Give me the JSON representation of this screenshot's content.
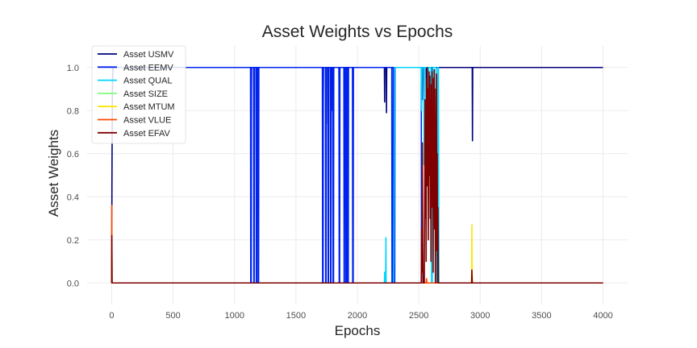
{
  "chart_data": {
    "type": "line",
    "title": "Asset Weights vs Epochs",
    "xlabel": "Epochs",
    "ylabel": "Asset Weights",
    "xlim": [
      -200,
      4200
    ],
    "ylim": [
      -0.1,
      1.1
    ],
    "xticks": [
      0,
      500,
      1000,
      1500,
      2000,
      2500,
      3000,
      3500,
      4000
    ],
    "yticks": [
      0.0,
      0.2,
      0.4,
      0.6,
      0.8,
      1.0
    ],
    "ytick_labels": [
      "0.0",
      "0.2",
      "0.4",
      "0.6",
      "0.8",
      "1.0"
    ],
    "grid": true,
    "legend_position": "top-left",
    "series": [
      {
        "name": "Asset USMV",
        "color": "#00007f",
        "points": [
          [
            0,
            0.0
          ],
          [
            2,
            0.45
          ],
          [
            4,
            0.72
          ],
          [
            6,
            0.9
          ],
          [
            10,
            1.0
          ],
          [
            1135,
            1.0
          ],
          [
            1137,
            0.83
          ],
          [
            1139,
            1.0
          ],
          [
            1720,
            1.0
          ],
          [
            1722,
            0.83
          ],
          [
            1724,
            1.0
          ],
          [
            1745,
            1.0
          ],
          [
            1747,
            0.74
          ],
          [
            1749,
            1.0
          ],
          [
            1795,
            1.0
          ],
          [
            1797,
            0.8
          ],
          [
            1799,
            1.0
          ],
          [
            1850,
            1.0
          ],
          [
            1852,
            0.84
          ],
          [
            1854,
            1.0
          ],
          [
            1905,
            1.0
          ],
          [
            1907,
            0.89
          ],
          [
            1909,
            1.0
          ],
          [
            2220,
            1.0
          ],
          [
            2222,
            0.84
          ],
          [
            2224,
            1.0
          ],
          [
            2235,
            1.0
          ],
          [
            2237,
            0.79
          ],
          [
            2239,
            1.0
          ],
          [
            2525,
            1.0
          ],
          [
            2528,
            0.85
          ],
          [
            2531,
            1.0
          ],
          [
            2560,
            1.0
          ],
          [
            2563,
            0.55
          ],
          [
            2566,
            1.0
          ],
          [
            2600,
            1.0
          ],
          [
            2604,
            0.7
          ],
          [
            2608,
            1.0
          ],
          [
            2935,
            1.0
          ],
          [
            2937,
            0.66
          ],
          [
            2939,
            1.0
          ],
          [
            4000,
            1.0
          ]
        ]
      },
      {
        "name": "Asset EEMV",
        "color": "#0022ee",
        "points": [
          [
            0,
            1.0
          ],
          [
            1130,
            1.0
          ],
          [
            1132,
            0.0
          ],
          [
            1134,
            0.17
          ],
          [
            1136,
            0.0
          ],
          [
            1138,
            1.0
          ],
          [
            1155,
            1.0
          ],
          [
            1157,
            0.0
          ],
          [
            1160,
            0.0
          ],
          [
            1162,
            1.0
          ],
          [
            1175,
            1.0
          ],
          [
            1177,
            0.0
          ],
          [
            1180,
            0.0
          ],
          [
            1182,
            1.0
          ],
          [
            1190,
            1.0
          ],
          [
            1192,
            0.0
          ],
          [
            1196,
            0.0
          ],
          [
            1198,
            1.0
          ],
          [
            1715,
            1.0
          ],
          [
            1717,
            0.0
          ],
          [
            1719,
            0.16
          ],
          [
            1721,
            0.0
          ],
          [
            1723,
            1.0
          ],
          [
            1740,
            1.0
          ],
          [
            1742,
            0.0
          ],
          [
            1745,
            0.0
          ],
          [
            1747,
            1.0
          ],
          [
            1760,
            1.0
          ],
          [
            1762,
            0.0
          ],
          [
            1765,
            0.0
          ],
          [
            1767,
            1.0
          ],
          [
            1780,
            1.0
          ],
          [
            1782,
            0.0
          ],
          [
            1785,
            0.0
          ],
          [
            1787,
            1.0
          ],
          [
            1800,
            1.0
          ],
          [
            1802,
            0.0
          ],
          [
            1806,
            0.0
          ],
          [
            1808,
            1.0
          ],
          [
            1850,
            1.0
          ],
          [
            1852,
            0.0
          ],
          [
            1856,
            0.0
          ],
          [
            1858,
            1.0
          ],
          [
            1890,
            1.0
          ],
          [
            1892,
            0.0
          ],
          [
            1895,
            0.0
          ],
          [
            1897,
            1.0
          ],
          [
            1905,
            1.0
          ],
          [
            1907,
            0.0
          ],
          [
            1912,
            0.0
          ],
          [
            1914,
            1.0
          ],
          [
            1920,
            1.0
          ],
          [
            1922,
            0.0
          ],
          [
            1926,
            0.0
          ],
          [
            1928,
            1.0
          ],
          [
            1960,
            1.0
          ],
          [
            1962,
            0.0
          ],
          [
            1966,
            0.0
          ],
          [
            1968,
            1.0
          ],
          [
            2280,
            1.0
          ],
          [
            2282,
            0.0
          ],
          [
            2290,
            0.0
          ],
          [
            2292,
            1.0
          ],
          [
            2298,
            1.0
          ],
          [
            2300,
            0.0
          ],
          [
            2304,
            0.0
          ],
          [
            2306,
            1.0
          ],
          [
            2520,
            1.0
          ],
          [
            2522,
            0.0
          ],
          [
            4000,
            0.0
          ]
        ]
      },
      {
        "name": "Asset QUAL",
        "color": "#00d4ff",
        "points": [
          [
            0,
            0.0
          ],
          [
            2220,
            0.0
          ],
          [
            2222,
            0.05
          ],
          [
            2224,
            0.0
          ],
          [
            2230,
            0.0
          ],
          [
            2232,
            0.21
          ],
          [
            2234,
            0.0
          ],
          [
            2295,
            0.0
          ],
          [
            2297,
            0.12
          ],
          [
            2300,
            0.57
          ],
          [
            2302,
            1.0
          ],
          [
            2520,
            1.0
          ],
          [
            2523,
            0.8
          ],
          [
            2526,
            1.0
          ],
          [
            2540,
            1.0
          ],
          [
            2543,
            0.55
          ],
          [
            2546,
            1.0
          ],
          [
            2575,
            1.0
          ],
          [
            2578,
            0.7
          ],
          [
            2581,
            1.0
          ],
          [
            2600,
            1.0
          ],
          [
            2604,
            0.0
          ],
          [
            2610,
            0.0
          ],
          [
            2614,
            1.0
          ],
          [
            2640,
            1.0
          ],
          [
            2644,
            0.0
          ],
          [
            2650,
            0.0
          ],
          [
            2654,
            1.0
          ],
          [
            2660,
            1.0
          ],
          [
            2664,
            0.0
          ],
          [
            4000,
            0.0
          ]
        ]
      },
      {
        "name": "Asset SIZE",
        "color": "#7cff79",
        "points": [
          [
            0,
            0.0
          ],
          [
            4000,
            0.0
          ]
        ]
      },
      {
        "name": "Asset MTUM",
        "color": "#ffe600",
        "points": [
          [
            0,
            0.0
          ],
          [
            2930,
            0.0
          ],
          [
            2932,
            0.27
          ],
          [
            2934,
            0.05
          ],
          [
            2937,
            0.0
          ],
          [
            4000,
            0.0
          ]
        ]
      },
      {
        "name": "Asset VLUE",
        "color": "#ff4a00",
        "points": [
          [
            0,
            0.0
          ],
          [
            1,
            0.36
          ],
          [
            3,
            0.0
          ],
          [
            2560,
            0.0
          ],
          [
            2563,
            0.02
          ],
          [
            2566,
            0.0
          ],
          [
            4000,
            0.0
          ]
        ]
      },
      {
        "name": "Asset EFAV",
        "color": "#7f0000",
        "points": [
          [
            0,
            0.0
          ],
          [
            1,
            0.22
          ],
          [
            3,
            0.0
          ],
          [
            2520,
            0.0
          ],
          [
            2523,
            0.25
          ],
          [
            2526,
            0.05
          ],
          [
            2529,
            0.65
          ],
          [
            2532,
            0.2
          ],
          [
            2535,
            0.0
          ],
          [
            2545,
            0.0
          ],
          [
            2548,
            0.4
          ],
          [
            2551,
            0.85
          ],
          [
            2554,
            0.3
          ],
          [
            2557,
            0.7
          ],
          [
            2560,
            0.1
          ],
          [
            2563,
            0.95
          ],
          [
            2566,
            0.45
          ],
          [
            2569,
            1.0
          ],
          [
            2572,
            0.6
          ],
          [
            2575,
            0.9
          ],
          [
            2578,
            0.2
          ],
          [
            2581,
            0.75
          ],
          [
            2584,
            0.98
          ],
          [
            2587,
            0.5
          ],
          [
            2590,
            0.96
          ],
          [
            2593,
            0.3
          ],
          [
            2596,
            0.85
          ],
          [
            2599,
            0.1
          ],
          [
            2602,
            0.92
          ],
          [
            2605,
            0.6
          ],
          [
            2608,
            0.98
          ],
          [
            2611,
            0.35
          ],
          [
            2614,
            0.8
          ],
          [
            2617,
            0.05
          ],
          [
            2620,
            0.95
          ],
          [
            2623,
            0.55
          ],
          [
            2626,
            0.99
          ],
          [
            2629,
            0.25
          ],
          [
            2632,
            0.7
          ],
          [
            2635,
            0.0
          ],
          [
            2638,
            0.9
          ],
          [
            2641,
            0.45
          ],
          [
            2644,
            0.97
          ],
          [
            2647,
            0.15
          ],
          [
            2650,
            0.6
          ],
          [
            2653,
            0.0
          ],
          [
            2656,
            0.35
          ],
          [
            2659,
            0.0
          ],
          [
            2930,
            0.0
          ],
          [
            2932,
            0.06
          ],
          [
            2935,
            0.0
          ],
          [
            4000,
            0.0
          ]
        ]
      }
    ]
  }
}
